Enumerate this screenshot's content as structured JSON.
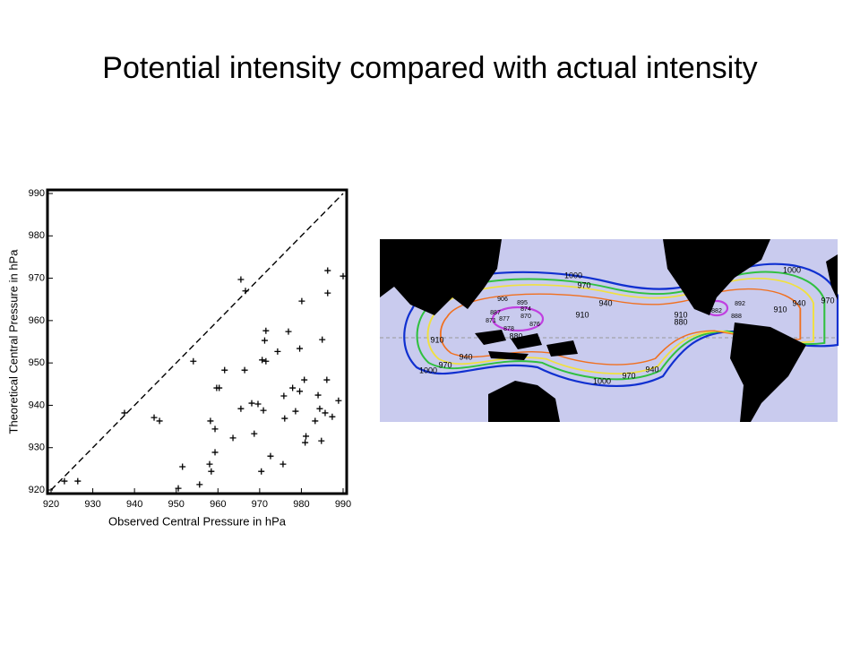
{
  "title": "Potential intensity compared with actual intensity",
  "chart_data": {
    "type": "scatter",
    "x_label": "Observed Central Pressure in hPa",
    "y_label": "Theoretical Central Pressure in hPa",
    "xlim": [
      920,
      990
    ],
    "ylim": [
      920,
      990
    ],
    "xticks": [
      920,
      930,
      940,
      950,
      960,
      970,
      980,
      990
    ],
    "yticks": [
      920,
      930,
      940,
      950,
      960,
      970,
      980,
      990
    ],
    "grid": false,
    "color": "#000000",
    "x": [
      923.2,
      926.4,
      937.6,
      944.7,
      946.0,
      954.1,
      951.5,
      950.5,
      955.6,
      958.2,
      958.0,
      958.4,
      959.3,
      959.3,
      959.7,
      960.3,
      961.6,
      963.6,
      965.5,
      966.6,
      965.5,
      966.4,
      968.1,
      968.7,
      969.6,
      970.4,
      970.6,
      971.2,
      971.5,
      971.5,
      970.9,
      972.6,
      974.3,
      975.6,
      975.8,
      976.0,
      976.9,
      977.9,
      978.6,
      979.6,
      980.1,
      980.7,
      981.1,
      980.9,
      979.6,
      983.3,
      984.4,
      984.8,
      985.0,
      985.7,
      986.1,
      986.3,
      986.3,
      987.4,
      988.9,
      990.0,
      984.0
    ],
    "values": [
      922.1,
      922.1,
      938.2,
      937.1,
      936.3,
      950.4,
      925.5,
      920.4,
      921.3,
      936.3,
      926.1,
      924.4,
      928.9,
      934.4,
      944.1,
      944.1,
      948.3,
      932.3,
      969.7,
      967.0,
      939.2,
      948.3,
      940.5,
      933.3,
      940.3,
      924.4,
      950.7,
      955.3,
      957.6,
      950.4,
      938.8,
      928.0,
      952.7,
      926.1,
      942.2,
      936.9,
      957.4,
      944.1,
      938.6,
      943.3,
      964.6,
      946.0,
      932.7,
      931.2,
      953.4,
      936.3,
      939.2,
      931.6,
      955.5,
      938.2,
      946.0,
      971.8,
      966.5,
      937.3,
      941.1,
      970.5,
      942.4
    ]
  },
  "map": {
    "labels": [
      "1000",
      "970",
      "940",
      "910",
      "880",
      "910",
      "940",
      "970",
      "1000",
      "1000",
      "970",
      "940",
      "910",
      "880",
      "1000",
      "970",
      "940",
      "910",
      "906",
      "895",
      "874",
      "887",
      "870",
      "871",
      "877",
      "878",
      "876",
      "892",
      "882",
      "888"
    ]
  }
}
